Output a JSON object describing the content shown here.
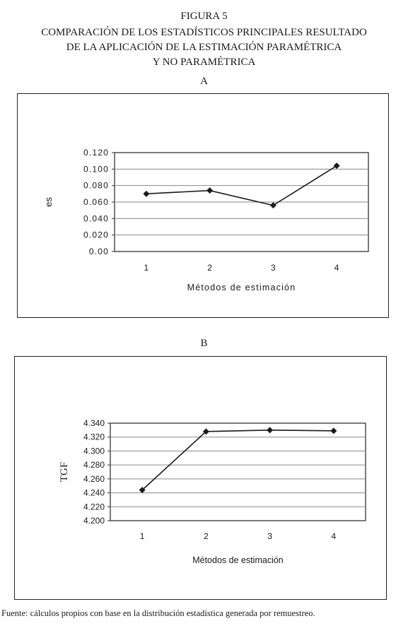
{
  "figure": {
    "number": "FIGURA 5",
    "title_lines": [
      "COMPARACIÓN DE LOS ESTADÍSTICOS PRINCIPALES RESULTADO",
      "DE LA APLICACIÓN DE LA ESTIMACIÓN PARAMÉTRICA",
      "Y NO PARAMÉTRICA"
    ],
    "source": "Fuente: cálculos propios con base en la distribución estadística generada por remuestreo."
  },
  "chart_data": [
    {
      "panel": "A",
      "type": "line",
      "categories": [
        "1",
        "2",
        "3",
        "4"
      ],
      "series": [
        {
          "values": [
            0.07,
            0.074,
            0.056,
            0.104
          ]
        }
      ],
      "xlabel": "Métodos de estimación",
      "ylabel": "es",
      "ylim": [
        0.0,
        0.12
      ],
      "yticks": [
        "0.00",
        "0.020",
        "0.040",
        "0.060",
        "0.080",
        "0.100",
        "0.120"
      ],
      "grid": true,
      "marker": "diamond",
      "color": "#1a1a1a"
    },
    {
      "panel": "B",
      "type": "line",
      "categories": [
        "1",
        "2",
        "3",
        "4"
      ],
      "series": [
        {
          "values": [
            4.244,
            4.328,
            4.33,
            4.329
          ]
        }
      ],
      "xlabel": "Métodos de estimación",
      "ylabel": "TGF",
      "ylim": [
        4.2,
        4.34
      ],
      "yticks": [
        "4.200",
        "4.220",
        "4.240",
        "4.260",
        "4.280",
        "4.300",
        "4.320",
        "4.340"
      ],
      "grid": true,
      "marker": "diamond",
      "color": "#1a1a1a"
    }
  ]
}
